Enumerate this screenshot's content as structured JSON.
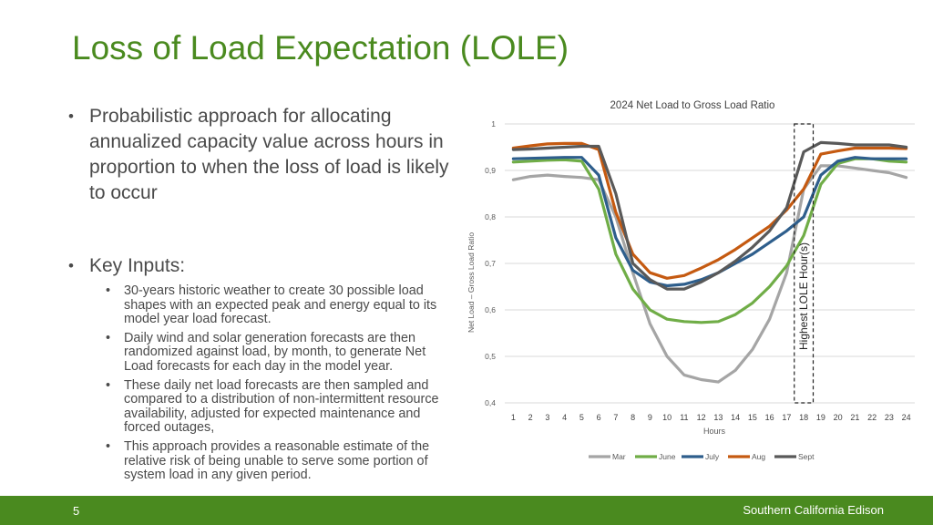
{
  "slide": {
    "title": "Loss of Load Expectation (LOLE)",
    "bullet1": "Probabilistic approach for allocating annualized capacity value across hours in proportion to when the loss of load is likely to occur",
    "bullet2": "Key Inputs:",
    "sub_bullets": [
      "30-years historic weather to create 30 possible load shapes with an expected peak and energy equal to its model year load forecast.",
      "Daily wind and solar generation forecasts are then randomized against load, by month, to generate Net Load forecasts for each day in the model year.",
      "These daily net load forecasts are then sampled and compared to a distribution of non-intermittent resource availability, adjusted for expected maintenance and forced outages,",
      "This approach provides a reasonable estimate of the relative risk of being unable to serve some portion of system load in any given period."
    ],
    "page_number": "5",
    "company": "Southern California Edison",
    "accent_color": "#4a8a1f"
  },
  "chart_data": {
    "type": "line",
    "title": "2024 Net Load to Gross Load Ratio",
    "xlabel": "Hours",
    "ylabel": "Net Load – Gross Load Ratio",
    "x": [
      1,
      2,
      3,
      4,
      5,
      6,
      7,
      8,
      9,
      10,
      11,
      12,
      13,
      14,
      15,
      16,
      17,
      18,
      19,
      20,
      21,
      22,
      23,
      24
    ],
    "ylim": [
      0.4,
      1
    ],
    "yticks": [
      "0,4",
      "0,5",
      "0,6",
      "0,7",
      "0,8",
      "0,9",
      "1"
    ],
    "ytick_values": [
      0.4,
      0.5,
      0.6,
      0.7,
      0.8,
      0.9,
      1.0
    ],
    "grid": true,
    "legend_position": "bottom",
    "annotation": {
      "label": "Highest LOLE Hour(s)",
      "x_range": [
        18,
        19
      ]
    },
    "series": [
      {
        "name": "Mar",
        "color": "#a5a5a5",
        "values": [
          0.88,
          0.887,
          0.89,
          0.887,
          0.885,
          0.88,
          0.8,
          0.68,
          0.57,
          0.5,
          0.46,
          0.45,
          0.445,
          0.47,
          0.515,
          0.58,
          0.68,
          0.86,
          0.91,
          0.91,
          0.905,
          0.9,
          0.895,
          0.885
        ]
      },
      {
        "name": "June",
        "color": "#70ad47",
        "values": [
          0.918,
          0.92,
          0.922,
          0.923,
          0.92,
          0.86,
          0.72,
          0.645,
          0.6,
          0.58,
          0.575,
          0.573,
          0.575,
          0.59,
          0.615,
          0.65,
          0.695,
          0.76,
          0.87,
          0.915,
          0.925,
          0.925,
          0.92,
          0.918
        ]
      },
      {
        "name": "July",
        "color": "#2e5e8c",
        "values": [
          0.925,
          0.926,
          0.927,
          0.928,
          0.928,
          0.89,
          0.755,
          0.685,
          0.66,
          0.652,
          0.655,
          0.665,
          0.68,
          0.7,
          0.72,
          0.745,
          0.77,
          0.8,
          0.89,
          0.92,
          0.928,
          0.925,
          0.925,
          0.925
        ]
      },
      {
        "name": "Aug",
        "color": "#c55a11",
        "values": [
          0.948,
          0.953,
          0.957,
          0.958,
          0.958,
          0.945,
          0.81,
          0.72,
          0.68,
          0.668,
          0.674,
          0.69,
          0.708,
          0.73,
          0.755,
          0.78,
          0.815,
          0.86,
          0.935,
          0.942,
          0.948,
          0.948,
          0.948,
          0.947
        ]
      },
      {
        "name": "Sept",
        "color": "#595959",
        "values": [
          0.945,
          0.946,
          0.948,
          0.95,
          0.952,
          0.952,
          0.85,
          0.7,
          0.665,
          0.645,
          0.645,
          0.66,
          0.68,
          0.705,
          0.735,
          0.77,
          0.82,
          0.94,
          0.96,
          0.958,
          0.955,
          0.955,
          0.955,
          0.95
        ]
      }
    ]
  }
}
